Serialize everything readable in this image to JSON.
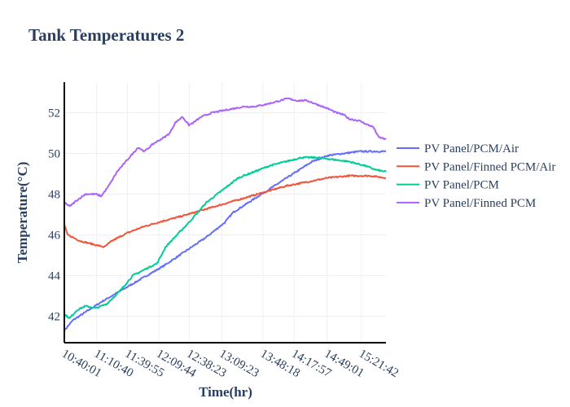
{
  "chart_data": {
    "type": "line",
    "title": "Tank Temperatures 2",
    "xlabel": "Time(hr)",
    "ylabel": "Temperature(°C)",
    "x_ticks": [
      "10:40:01",
      "11:10:40",
      "11:39:55",
      "12:09:44",
      "12:38:23",
      "13:09:23",
      "13:48:18",
      "14:17:57",
      "14:49:01",
      "15:21:42"
    ],
    "x_tick_positions_min": [
      0,
      30.65,
      59.9,
      89.7,
      118.4,
      149.4,
      188.3,
      217.9,
      249.0,
      281.7
    ],
    "xlim_min": [
      0,
      305
    ],
    "ylim": [
      40.7,
      53.5
    ],
    "y_ticks": [
      42,
      44,
      46,
      48,
      50,
      52
    ],
    "grid": true,
    "legend_position": "right",
    "series": [
      {
        "name": "PV Panel/PCM/Air",
        "color": "#636efa",
        "points": [
          [
            0,
            41.3
          ],
          [
            8,
            41.8
          ],
          [
            20,
            42.2
          ],
          [
            35,
            42.7
          ],
          [
            55,
            43.3
          ],
          [
            75,
            43.9
          ],
          [
            95,
            44.5
          ],
          [
            115,
            45.2
          ],
          [
            135,
            45.9
          ],
          [
            152,
            46.6
          ],
          [
            160,
            47.1
          ],
          [
            175,
            47.6
          ],
          [
            190,
            48.1
          ],
          [
            205,
            48.6
          ],
          [
            220,
            49.1
          ],
          [
            235,
            49.6
          ],
          [
            250,
            49.9
          ],
          [
            265,
            50.0
          ],
          [
            280,
            50.1
          ],
          [
            295,
            50.1
          ],
          [
            305,
            50.1
          ]
        ]
      },
      {
        "name": "PV Panel/Finned PCM/Air",
        "color": "#ef553b",
        "points": [
          [
            0,
            46.5
          ],
          [
            3,
            46.0
          ],
          [
            15,
            45.7
          ],
          [
            30,
            45.5
          ],
          [
            38,
            45.4
          ],
          [
            45,
            45.7
          ],
          [
            60,
            46.1
          ],
          [
            75,
            46.4
          ],
          [
            95,
            46.7
          ],
          [
            110,
            46.9
          ],
          [
            130,
            47.2
          ],
          [
            150,
            47.5
          ],
          [
            170,
            47.8
          ],
          [
            190,
            48.1
          ],
          [
            210,
            48.4
          ],
          [
            230,
            48.6
          ],
          [
            250,
            48.8
          ],
          [
            270,
            48.9
          ],
          [
            290,
            48.9
          ],
          [
            305,
            48.8
          ]
        ]
      },
      {
        "name": "PV Panel/PCM",
        "color": "#00cc96",
        "points": [
          [
            0,
            42.1
          ],
          [
            5,
            41.9
          ],
          [
            12,
            42.3
          ],
          [
            20,
            42.5
          ],
          [
            30,
            42.4
          ],
          [
            40,
            42.6
          ],
          [
            52,
            43.2
          ],
          [
            65,
            44.0
          ],
          [
            80,
            44.4
          ],
          [
            88,
            44.6
          ],
          [
            96,
            45.4
          ],
          [
            105,
            45.9
          ],
          [
            118,
            46.6
          ],
          [
            135,
            47.6
          ],
          [
            150,
            48.2
          ],
          [
            165,
            48.8
          ],
          [
            180,
            49.1
          ],
          [
            195,
            49.4
          ],
          [
            210,
            49.6
          ],
          [
            225,
            49.8
          ],
          [
            240,
            49.8
          ],
          [
            255,
            49.7
          ],
          [
            270,
            49.6
          ],
          [
            285,
            49.4
          ],
          [
            295,
            49.2
          ],
          [
            305,
            49.1
          ]
        ]
      },
      {
        "name": "PV Panel/Finned PCM",
        "color": "#ab63fa",
        "points": [
          [
            0,
            47.6
          ],
          [
            5,
            47.4
          ],
          [
            12,
            47.7
          ],
          [
            20,
            48.0
          ],
          [
            30,
            48.0
          ],
          [
            35,
            47.9
          ],
          [
            42,
            48.4
          ],
          [
            50,
            49.1
          ],
          [
            60,
            49.7
          ],
          [
            70,
            50.3
          ],
          [
            76,
            50.1
          ],
          [
            85,
            50.5
          ],
          [
            95,
            50.8
          ],
          [
            100,
            51.0
          ],
          [
            105,
            51.5
          ],
          [
            112,
            51.8
          ],
          [
            118,
            51.4
          ],
          [
            122,
            51.5
          ],
          [
            130,
            51.8
          ],
          [
            140,
            52.0
          ],
          [
            150,
            52.1
          ],
          [
            160,
            52.2
          ],
          [
            170,
            52.3
          ],
          [
            180,
            52.3
          ],
          [
            190,
            52.4
          ],
          [
            198,
            52.5
          ],
          [
            205,
            52.6
          ],
          [
            212,
            52.7
          ],
          [
            220,
            52.6
          ],
          [
            230,
            52.6
          ],
          [
            240,
            52.4
          ],
          [
            250,
            52.2
          ],
          [
            258,
            52.0
          ],
          [
            265,
            51.9
          ],
          [
            270,
            51.7
          ],
          [
            280,
            51.6
          ],
          [
            288,
            51.4
          ],
          [
            293,
            51.3
          ],
          [
            298,
            50.8
          ],
          [
            305,
            50.7
          ]
        ]
      }
    ]
  }
}
